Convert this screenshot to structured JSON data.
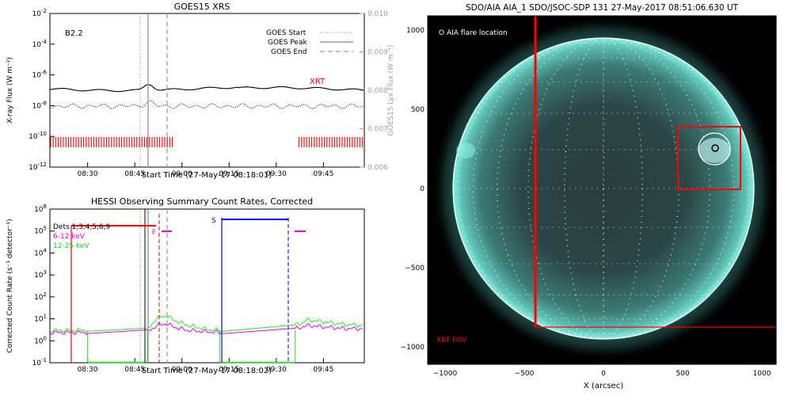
{
  "goes": {
    "title": "GOES15 XRS",
    "class_label": "B2.2",
    "xlabel": "Start Time (27-May-17 08:18:01)",
    "ylabel": "X-ray Flux (W m⁻²)",
    "y2label": "GOES15 Lyx Flux (W m⁻²)",
    "ytick_exponents": [
      "-2",
      "-4",
      "-6",
      "-8",
      "-10",
      "-12"
    ],
    "y2ticks": [
      "0.010",
      "0.009",
      "0.008",
      "0.007",
      "0.006"
    ],
    "xticks": [
      "08:30",
      "08:45",
      "09:00",
      "09:15",
      "09:30",
      "09:45"
    ],
    "legend": [
      "GOES Start",
      "GOES Peak",
      "GOES End"
    ],
    "xrt_label": "XRT"
  },
  "hessi": {
    "title": "HESSI Observing Summary Count Rates, Corrected",
    "xlabel": "Start Time (27-May-17 08:18:02)",
    "ylabel": "Corrected Count Rate (s⁻¹ detector⁻¹)",
    "ytick_exponents": [
      "8",
      "5",
      "4",
      "3",
      "2",
      "1",
      "0",
      "-1"
    ],
    "xticks": [
      "08:30",
      "08:45",
      "09:00",
      "09:15",
      "09:30",
      "09:45"
    ],
    "legend": [
      "Dets 1,3,4,5,6,9",
      "6-12 keV",
      "12-25 keV"
    ],
    "flag_f": "F",
    "flag_s": "S"
  },
  "sdo": {
    "title": "SDO/AIA AIA_1 SDO/JSOC-SDP 131 27-May-2017 08:51:06.630 UT",
    "flare_label": "O AIA flare location",
    "xrt_fov_label": "XRT FOV",
    "xlabel": "X (arcsec)",
    "xticks": [
      "−1000",
      "−500",
      "0",
      "500",
      "1000"
    ],
    "yticks": [
      "1000",
      "500",
      "0",
      "−500",
      "−1000"
    ]
  },
  "colors": {
    "red": "#ff0000",
    "magenta": "#ee00ee",
    "green": "#22ee22",
    "blue": "#0000ee",
    "gray": "#a0a0a0",
    "sun_core": "#2b3e3e",
    "sun_limb": "#7fe6d8"
  },
  "chart_data": [
    {
      "type": "line",
      "title": "GOES15 XRS",
      "xlabel": "Start Time (27-May-17 08:18:01)",
      "ylabel": "X-ray Flux (W m⁻²)",
      "y2label": "GOES15 Lyx Flux (W m⁻²)",
      "xlim": [
        "08:18",
        "09:58"
      ],
      "ylim": [
        1e-12,
        0.01
      ],
      "y2lim": [
        0.006,
        0.01
      ],
      "yscale": "log",
      "series": [],
      "goes_times": {
        "start": "08:48",
        "peak": "08:51",
        "end": "08:55"
      },
      "xrt_coverage": [
        [
          "08:18",
          "08:57"
        ],
        [
          "09:37",
          "09:58"
        ]
      ],
      "legend_position": "top-right"
    },
    {
      "type": "line",
      "title": "HESSI Observing Summary Count Rates, Corrected",
      "xlabel": "Start Time (27-May-17 08:18:02)",
      "ylabel": "Corrected Count Rate (s⁻¹ detector⁻¹)",
      "xlim": [
        "08:18",
        "09:58"
      ],
      "ylim": [
        0.1,
        1000000.0
      ],
      "yscale": "log",
      "series": [
        {
          "name": "6-12 keV",
          "points": [
            [
              "08:18",
              2.4
            ],
            [
              "08:30",
              2.4
            ],
            [
              "08:49",
              2.5
            ],
            [
              "08:52",
              5
            ],
            [
              "08:55",
              6
            ],
            [
              "08:58",
              4
            ],
            [
              "09:02",
              3
            ],
            [
              "09:08",
              2.6
            ],
            [
              "09:12",
              2.4
            ],
            [
              "09:36",
              3.5
            ],
            [
              "09:40",
              5
            ],
            [
              "09:46",
              4.2
            ],
            [
              "09:52",
              3.6
            ],
            [
              "09:58",
              3.5
            ]
          ]
        },
        {
          "name": "12-25 keV",
          "points": [
            [
              "08:18",
              3
            ],
            [
              "08:30",
              3
            ],
            [
              "08:49",
              3
            ],
            [
              "08:52",
              11
            ],
            [
              "08:55",
              14
            ],
            [
              "08:58",
              8
            ],
            [
              "09:02",
              5
            ],
            [
              "09:08",
              3.3
            ],
            [
              "09:12",
              3
            ],
            [
              "09:36",
              5
            ],
            [
              "09:40",
              9
            ],
            [
              "09:46",
              7
            ],
            [
              "09:52",
              5.5
            ],
            [
              "09:58",
              5
            ]
          ]
        }
      ],
      "night_intervals": [
        [
          "08:30",
          "08:49"
        ],
        [
          "09:12",
          "09:36"
        ]
      ],
      "flags": {
        "F": [
          "08:53",
          "08:57"
        ],
        "S": [
          "09:13",
          "09:34"
        ]
      },
      "goes_times": {
        "start": "08:48",
        "peak": "08:51",
        "end": "08:55"
      },
      "legend_position": "top-left"
    },
    {
      "type": "heatmap",
      "title": "SDO/AIA AIA_1 SDO/JSOC-SDP 131 27-May-2017 08:51:06.630 UT",
      "xlabel": "X (arcsec)",
      "xlim": [
        -1100,
        1100
      ],
      "ylim": [
        -1100,
        1100
      ],
      "flare_location": [
        730,
        270
      ],
      "flare_box": [
        [
          475,
          885
        ],
        [
          -25,
          385
        ]
      ],
      "xrt_fov": [
        [
          -450,
          1110
        ],
        [
          -860,
          1100
        ]
      ],
      "solar_radius_arcsec": 945,
      "grid": true
    }
  ]
}
